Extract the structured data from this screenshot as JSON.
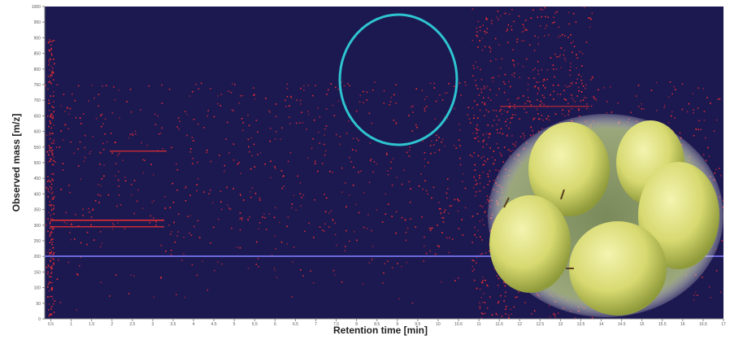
{
  "chart_data": {
    "type": "heatmap",
    "x_label": "Retention time [min]",
    "y_label": "Observed mass [m/z]",
    "xlim": [
      0.35,
      17
    ],
    "xticks": [
      0.5,
      1,
      1.5,
      2,
      2.5,
      3,
      3.5,
      4,
      4.5,
      5,
      5.5,
      6,
      6.5,
      7,
      7.5,
      8,
      8.5,
      9,
      9.5,
      10,
      10.5,
      11,
      11.5,
      12,
      12.5,
      13,
      13.5,
      14,
      14.5,
      15,
      15.5,
      16,
      16.5,
      17
    ],
    "ylim": [
      0,
      1000
    ],
    "yticks": [
      0,
      50,
      100,
      150,
      200,
      250,
      300,
      350,
      400,
      450,
      500,
      550,
      600,
      650,
      700,
      750,
      800,
      850,
      900,
      950,
      1000
    ],
    "background": "#1c1850",
    "color": "#ff3030"
  }
}
